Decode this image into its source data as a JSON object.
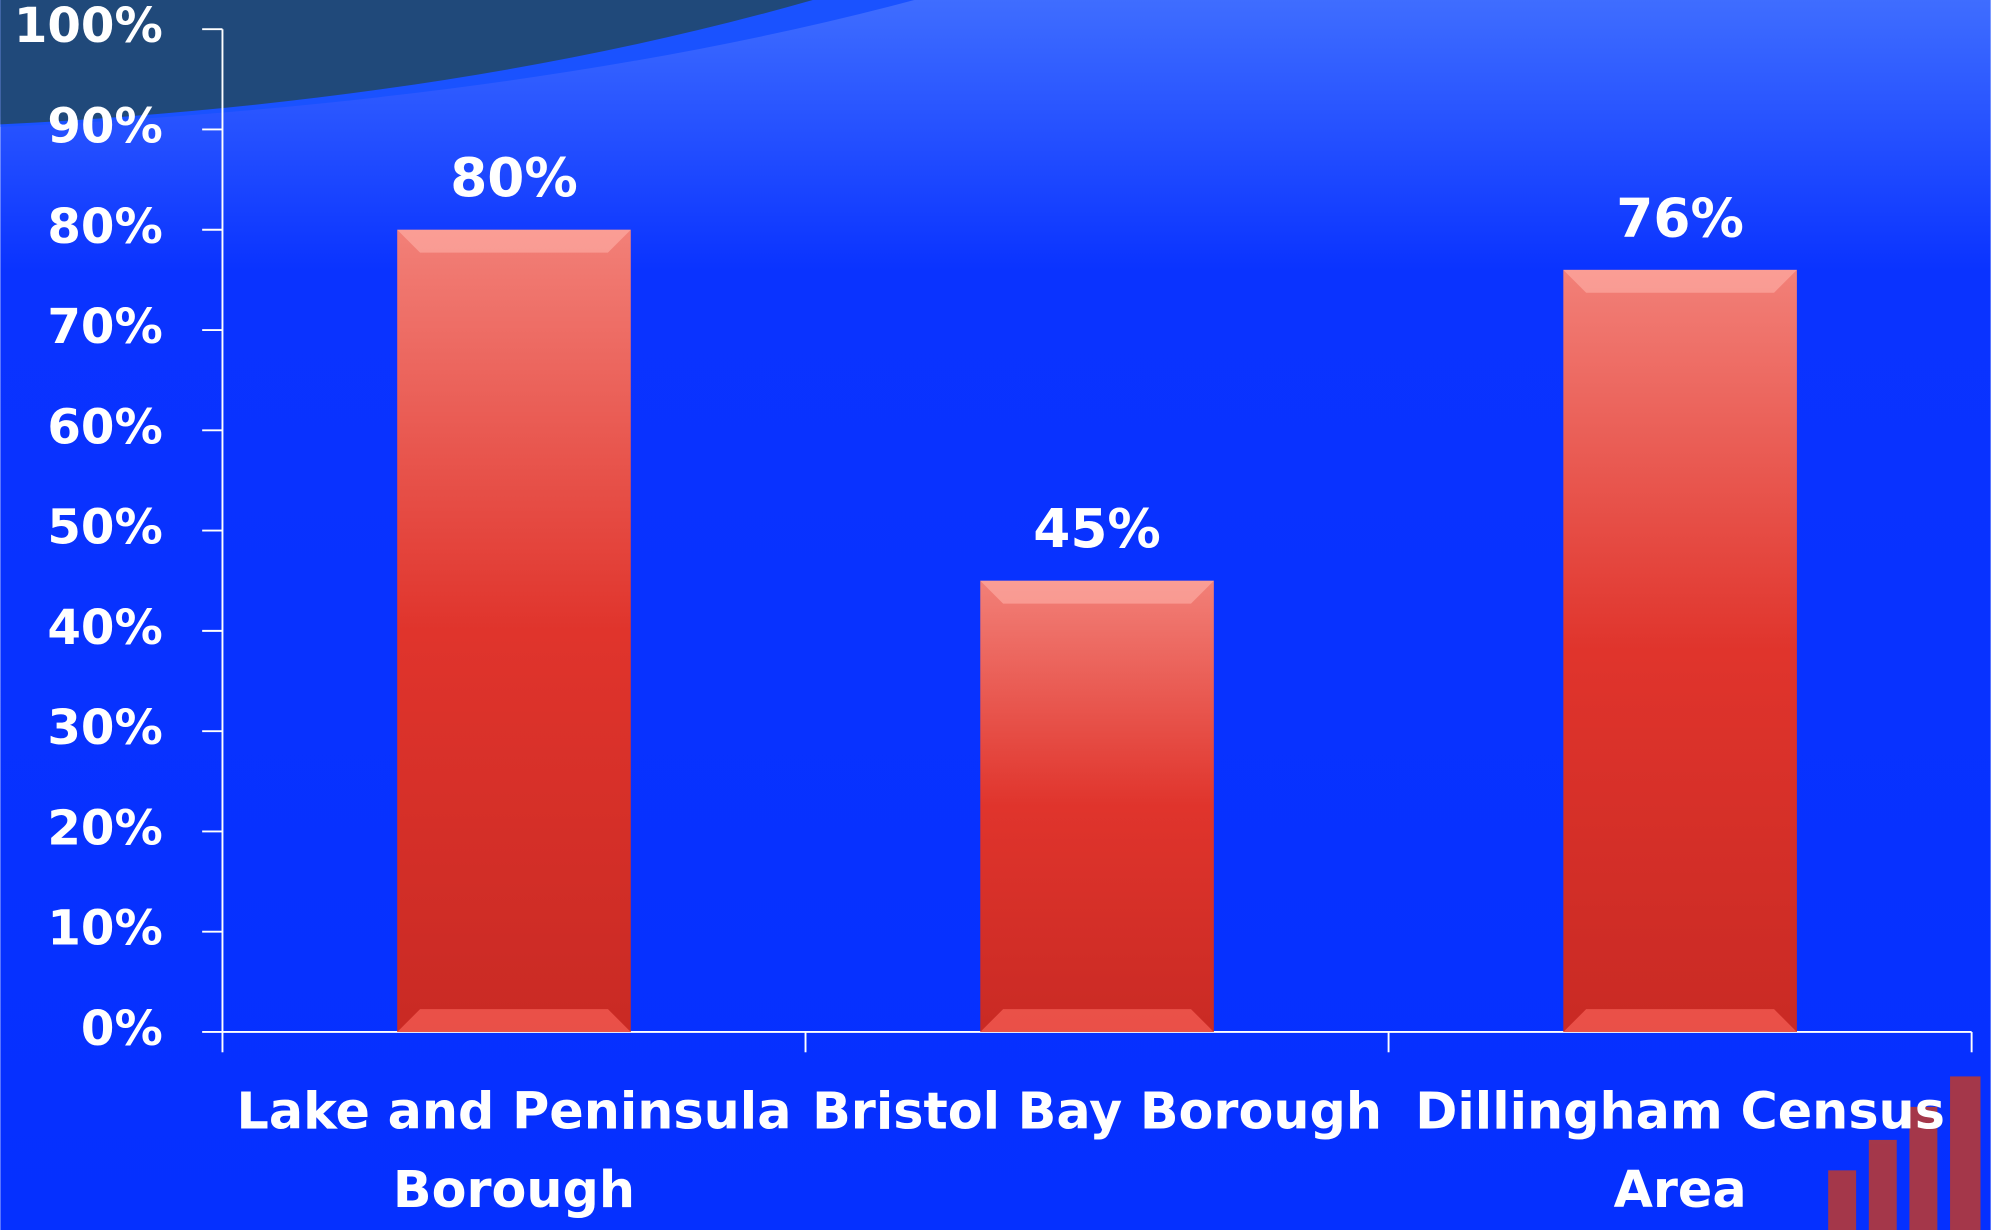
{
  "chart_data": {
    "type": "bar",
    "categories": [
      "Lake and Peninsula Borough",
      "Bristol Bay Borough",
      "Dillingham Census Area"
    ],
    "values": [
      80,
      45,
      76
    ],
    "value_labels": [
      "80%",
      "45%",
      "76%"
    ],
    "color": "#e03a30",
    "ylim": [
      0,
      100
    ],
    "yticks": [
      {
        "value": 0,
        "label": "0%"
      },
      {
        "value": 10,
        "label": "10%"
      },
      {
        "value": 20,
        "label": "20%"
      },
      {
        "value": 30,
        "label": "30%"
      },
      {
        "value": 40,
        "label": "40%"
      },
      {
        "value": 50,
        "label": "50%"
      },
      {
        "value": 60,
        "label": "60%"
      },
      {
        "value": 70,
        "label": "70%"
      },
      {
        "value": 80,
        "label": "80%"
      },
      {
        "value": 90,
        "label": "90%"
      },
      {
        "value": 100,
        "label": "100%"
      }
    ]
  }
}
